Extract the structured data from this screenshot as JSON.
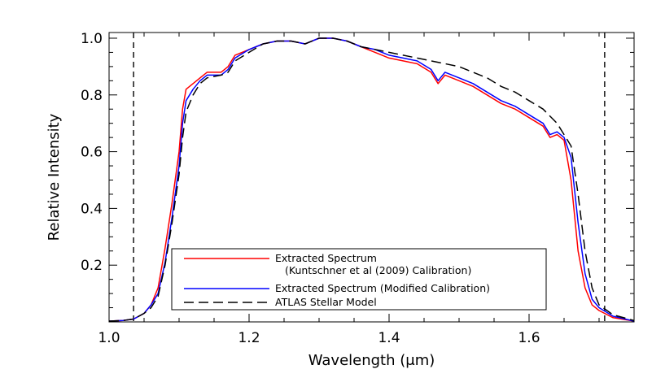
{
  "chart_data": {
    "type": "line",
    "title": "",
    "xlabel": "Wavelength (μm)",
    "ylabel": "Relative Intensity",
    "xlim": [
      1.0,
      1.75
    ],
    "ylim": [
      0.0,
      1.02
    ],
    "x_ticks": [
      "1.0",
      "1.2",
      "1.4",
      "1.6"
    ],
    "y_ticks": [
      "0.2",
      "0.4",
      "0.6",
      "0.8",
      "1.0"
    ],
    "legend_position": "bottom-center",
    "grid": false,
    "vlines": [
      1.035,
      1.708
    ],
    "series": [
      {
        "name": "Extracted Spectrum",
        "name_line2": "(Kuntschner et al (2009) Calibration)",
        "color": "#ff0000",
        "style": "solid",
        "points": [
          [
            1.0,
            0.003
          ],
          [
            1.02,
            0.005
          ],
          [
            1.035,
            0.01
          ],
          [
            1.05,
            0.03
          ],
          [
            1.06,
            0.06
          ],
          [
            1.07,
            0.12
          ],
          [
            1.08,
            0.26
          ],
          [
            1.09,
            0.42
          ],
          [
            1.1,
            0.6
          ],
          [
            1.105,
            0.75
          ],
          [
            1.11,
            0.82
          ],
          [
            1.12,
            0.84
          ],
          [
            1.13,
            0.86
          ],
          [
            1.14,
            0.88
          ],
          [
            1.16,
            0.88
          ],
          [
            1.17,
            0.9
          ],
          [
            1.18,
            0.94
          ],
          [
            1.2,
            0.96
          ],
          [
            1.22,
            0.98
          ],
          [
            1.24,
            0.99
          ],
          [
            1.26,
            0.99
          ],
          [
            1.28,
            0.98
          ],
          [
            1.3,
            1.0
          ],
          [
            1.32,
            1.0
          ],
          [
            1.34,
            0.99
          ],
          [
            1.36,
            0.97
          ],
          [
            1.38,
            0.95
          ],
          [
            1.4,
            0.93
          ],
          [
            1.42,
            0.92
          ],
          [
            1.44,
            0.91
          ],
          [
            1.46,
            0.88
          ],
          [
            1.47,
            0.84
          ],
          [
            1.48,
            0.87
          ],
          [
            1.5,
            0.85
          ],
          [
            1.52,
            0.83
          ],
          [
            1.54,
            0.8
          ],
          [
            1.56,
            0.77
          ],
          [
            1.58,
            0.75
          ],
          [
            1.6,
            0.72
          ],
          [
            1.62,
            0.69
          ],
          [
            1.63,
            0.65
          ],
          [
            1.64,
            0.66
          ],
          [
            1.65,
            0.64
          ],
          [
            1.66,
            0.5
          ],
          [
            1.67,
            0.25
          ],
          [
            1.68,
            0.12
          ],
          [
            1.69,
            0.06
          ],
          [
            1.7,
            0.04
          ],
          [
            1.72,
            0.015
          ],
          [
            1.75,
            0.003
          ]
        ]
      },
      {
        "name": "Extracted Spectrum (Modified Calibration)",
        "color": "#0000ff",
        "style": "solid",
        "points": [
          [
            1.0,
            0.003
          ],
          [
            1.02,
            0.005
          ],
          [
            1.035,
            0.01
          ],
          [
            1.05,
            0.03
          ],
          [
            1.06,
            0.06
          ],
          [
            1.07,
            0.1
          ],
          [
            1.08,
            0.21
          ],
          [
            1.09,
            0.37
          ],
          [
            1.1,
            0.55
          ],
          [
            1.105,
            0.7
          ],
          [
            1.11,
            0.78
          ],
          [
            1.12,
            0.82
          ],
          [
            1.13,
            0.85
          ],
          [
            1.14,
            0.87
          ],
          [
            1.16,
            0.87
          ],
          [
            1.17,
            0.89
          ],
          [
            1.18,
            0.93
          ],
          [
            1.2,
            0.96
          ],
          [
            1.22,
            0.98
          ],
          [
            1.24,
            0.99
          ],
          [
            1.26,
            0.99
          ],
          [
            1.28,
            0.98
          ],
          [
            1.3,
            1.0
          ],
          [
            1.32,
            1.0
          ],
          [
            1.34,
            0.99
          ],
          [
            1.36,
            0.97
          ],
          [
            1.38,
            0.96
          ],
          [
            1.4,
            0.94
          ],
          [
            1.42,
            0.93
          ],
          [
            1.44,
            0.92
          ],
          [
            1.46,
            0.89
          ],
          [
            1.47,
            0.85
          ],
          [
            1.48,
            0.88
          ],
          [
            1.5,
            0.86
          ],
          [
            1.52,
            0.84
          ],
          [
            1.54,
            0.81
          ],
          [
            1.56,
            0.78
          ],
          [
            1.58,
            0.76
          ],
          [
            1.6,
            0.73
          ],
          [
            1.62,
            0.7
          ],
          [
            1.63,
            0.66
          ],
          [
            1.64,
            0.67
          ],
          [
            1.65,
            0.65
          ],
          [
            1.66,
            0.58
          ],
          [
            1.67,
            0.35
          ],
          [
            1.68,
            0.17
          ],
          [
            1.69,
            0.08
          ],
          [
            1.7,
            0.05
          ],
          [
            1.72,
            0.02
          ],
          [
            1.75,
            0.003
          ]
        ]
      },
      {
        "name": "ATLAS Stellar Model",
        "color": "#000000",
        "style": "dashed",
        "points": [
          [
            1.0,
            0.003
          ],
          [
            1.02,
            0.005
          ],
          [
            1.035,
            0.01
          ],
          [
            1.05,
            0.03
          ],
          [
            1.06,
            0.05
          ],
          [
            1.07,
            0.09
          ],
          [
            1.08,
            0.2
          ],
          [
            1.09,
            0.35
          ],
          [
            1.1,
            0.52
          ],
          [
            1.105,
            0.65
          ],
          [
            1.11,
            0.74
          ],
          [
            1.12,
            0.8
          ],
          [
            1.13,
            0.84
          ],
          [
            1.14,
            0.86
          ],
          [
            1.16,
            0.87
          ],
          [
            1.17,
            0.88
          ],
          [
            1.18,
            0.92
          ],
          [
            1.2,
            0.95
          ],
          [
            1.22,
            0.98
          ],
          [
            1.24,
            0.99
          ],
          [
            1.26,
            0.99
          ],
          [
            1.28,
            0.98
          ],
          [
            1.3,
            1.0
          ],
          [
            1.32,
            1.0
          ],
          [
            1.34,
            0.99
          ],
          [
            1.36,
            0.97
          ],
          [
            1.38,
            0.96
          ],
          [
            1.4,
            0.95
          ],
          [
            1.42,
            0.94
          ],
          [
            1.44,
            0.93
          ],
          [
            1.46,
            0.92
          ],
          [
            1.48,
            0.91
          ],
          [
            1.5,
            0.9
          ],
          [
            1.52,
            0.88
          ],
          [
            1.54,
            0.86
          ],
          [
            1.56,
            0.83
          ],
          [
            1.58,
            0.81
          ],
          [
            1.6,
            0.78
          ],
          [
            1.62,
            0.75
          ],
          [
            1.64,
            0.7
          ],
          [
            1.65,
            0.66
          ],
          [
            1.66,
            0.62
          ],
          [
            1.67,
            0.45
          ],
          [
            1.68,
            0.25
          ],
          [
            1.69,
            0.12
          ],
          [
            1.7,
            0.06
          ],
          [
            1.72,
            0.025
          ],
          [
            1.75,
            0.005
          ]
        ]
      }
    ]
  }
}
